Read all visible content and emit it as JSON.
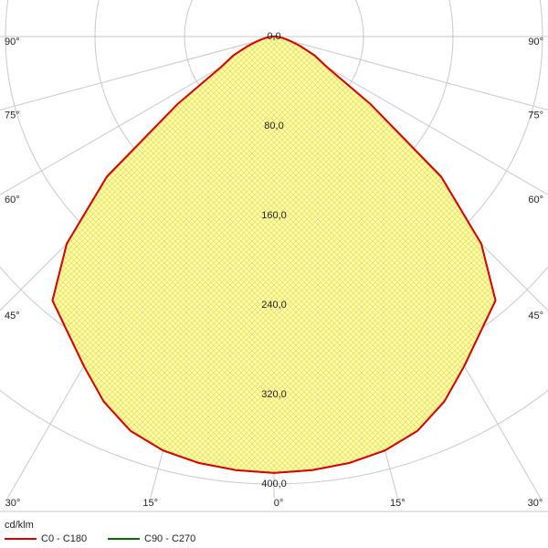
{
  "chart_data": {
    "type": "polar-intensity",
    "unit": "cd/klm",
    "rticks": [
      {
        "value": 0,
        "label": "0,0"
      },
      {
        "value": 80,
        "label": "80,0"
      },
      {
        "value": 160,
        "label": "160,0"
      },
      {
        "value": 240,
        "label": "240,0"
      },
      {
        "value": 320,
        "label": "320,0"
      },
      {
        "value": 400,
        "label": "400,0"
      }
    ],
    "angle_ticks": [
      {
        "value": 0,
        "label": "0°"
      },
      {
        "value": 15,
        "label": "15°"
      },
      {
        "value": 30,
        "label": "30°"
      },
      {
        "value": 45,
        "label": "45°"
      },
      {
        "value": 60,
        "label": "60°"
      },
      {
        "value": 75,
        "label": "75°"
      },
      {
        "value": 90,
        "label": "90°"
      }
    ],
    "angles": [
      0,
      5,
      10,
      15,
      20,
      25,
      30,
      35,
      40,
      45,
      50,
      55,
      60,
      65,
      70,
      75,
      80,
      85,
      90
    ],
    "series": [
      {
        "name": "C0 - C180",
        "color": "#e00000",
        "values": [
          390,
          389,
          387,
          383,
          375,
          360,
          340,
          322,
          308,
          262,
          195,
          105,
          55,
          40,
          25,
          15,
          8,
          3,
          0
        ]
      },
      {
        "name": "C90 - C270",
        "color": "#007000",
        "values": [
          390,
          389,
          387,
          383,
          375,
          360,
          340,
          322,
          308,
          262,
          195,
          105,
          55,
          40,
          25,
          15,
          8,
          3,
          0
        ]
      }
    ]
  }
}
